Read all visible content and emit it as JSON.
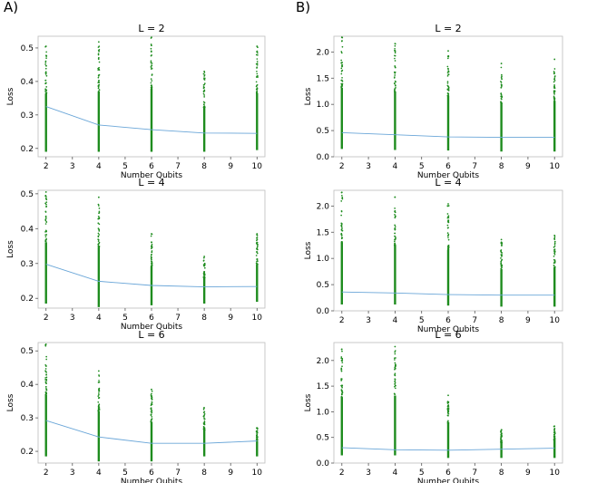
{
  "panel_labels": [
    "A)",
    "B)"
  ],
  "chart_data": [
    {
      "panel": "A)",
      "type": "scatter",
      "title": "L = 2",
      "xlabel": "Number Qubits",
      "ylabel": "Loss",
      "xlim": [
        1.7,
        10.3
      ],
      "ylim": [
        0.175,
        0.535
      ],
      "xticks": [
        2,
        3,
        4,
        5,
        6,
        7,
        8,
        9,
        10
      ],
      "yticks": [
        0.2,
        0.3,
        0.4,
        0.5
      ],
      "scatter_color": "#1e8c1e",
      "line_color": "#6aa6d8",
      "x": [
        2,
        4,
        6,
        8,
        10
      ],
      "min_loss": [
        0.19,
        0.19,
        0.19,
        0.19,
        0.195
      ],
      "max_loss": [
        0.505,
        0.518,
        0.532,
        0.43,
        0.505
      ],
      "mean_loss": [
        0.325,
        0.27,
        0.256,
        0.246,
        0.245
      ]
    },
    {
      "panel": "B)",
      "type": "scatter",
      "title": "L = 2",
      "xlabel": "Number Qubits",
      "ylabel": "Loss",
      "xlim": [
        1.7,
        10.3
      ],
      "ylim": [
        0.0,
        2.3
      ],
      "xticks": [
        2,
        3,
        4,
        5,
        6,
        7,
        8,
        9,
        10
      ],
      "yticks": [
        0.0,
        0.5,
        1.0,
        1.5,
        2.0
      ],
      "scatter_color": "#1e8c1e",
      "line_color": "#6aa6d8",
      "x": [
        2,
        4,
        6,
        8,
        10
      ],
      "min_loss": [
        0.15,
        0.13,
        0.12,
        0.1,
        0.1
      ],
      "max_loss": [
        2.28,
        2.16,
        2.02,
        1.78,
        1.86
      ],
      "mean_loss": [
        0.46,
        0.42,
        0.38,
        0.37,
        0.37
      ]
    },
    {
      "panel": "A)",
      "type": "scatter",
      "title": "L = 4",
      "xlabel": "Number Qubits",
      "ylabel": "Loss",
      "xlim": [
        1.7,
        10.3
      ],
      "ylim": [
        0.172,
        0.51
      ],
      "xticks": [
        2,
        3,
        4,
        5,
        6,
        7,
        8,
        9,
        10
      ],
      "yticks": [
        0.2,
        0.3,
        0.4,
        0.5
      ],
      "scatter_color": "#1e8c1e",
      "line_color": "#6aa6d8",
      "x": [
        2,
        4,
        6,
        8,
        10
      ],
      "min_loss": [
        0.185,
        0.175,
        0.18,
        0.185,
        0.19
      ],
      "max_loss": [
        0.505,
        0.49,
        0.385,
        0.32,
        0.385
      ],
      "mean_loss": [
        0.298,
        0.249,
        0.237,
        0.233,
        0.234
      ]
    },
    {
      "panel": "B)",
      "type": "scatter",
      "title": "L = 4",
      "xlabel": "Number Qubits",
      "ylabel": "Loss",
      "xlim": [
        1.7,
        10.3
      ],
      "ylim": [
        0.0,
        2.3
      ],
      "xticks": [
        2,
        3,
        4,
        5,
        6,
        7,
        8,
        9,
        10
      ],
      "yticks": [
        0.0,
        0.5,
        1.0,
        1.5,
        2.0
      ],
      "scatter_color": "#1e8c1e",
      "line_color": "#6aa6d8",
      "x": [
        2,
        4,
        6,
        8,
        10
      ],
      "min_loss": [
        0.12,
        0.12,
        0.1,
        0.08,
        0.08
      ],
      "max_loss": [
        2.26,
        2.17,
        2.04,
        1.36,
        1.44
      ],
      "mean_loss": [
        0.36,
        0.34,
        0.31,
        0.3,
        0.3
      ]
    },
    {
      "panel": "A)",
      "type": "scatter",
      "title": "L = 6",
      "xlabel": "Number Qubits",
      "ylabel": "Loss",
      "xlim": [
        1.7,
        10.3
      ],
      "ylim": [
        0.165,
        0.525
      ],
      "xticks": [
        2,
        3,
        4,
        5,
        6,
        7,
        8,
        9,
        10
      ],
      "yticks": [
        0.2,
        0.3,
        0.4,
        0.5
      ],
      "scatter_color": "#1e8c1e",
      "line_color": "#6aa6d8",
      "x": [
        2,
        4,
        6,
        8,
        10
      ],
      "min_loss": [
        0.185,
        0.17,
        0.17,
        0.185,
        0.185
      ],
      "max_loss": [
        0.52,
        0.44,
        0.385,
        0.33,
        0.27
      ],
      "mean_loss": [
        0.292,
        0.243,
        0.224,
        0.224,
        0.231
      ]
    },
    {
      "panel": "B)",
      "type": "scatter",
      "title": "L = 6",
      "xlabel": "Number Qubits",
      "ylabel": "Loss",
      "xlim": [
        1.7,
        10.3
      ],
      "ylim": [
        0.0,
        2.35
      ],
      "xticks": [
        2,
        3,
        4,
        5,
        6,
        7,
        8,
        9,
        10
      ],
      "yticks": [
        0.0,
        0.5,
        1.0,
        1.5,
        2.0
      ],
      "scatter_color": "#1e8c1e",
      "line_color": "#6aa6d8",
      "x": [
        2,
        4,
        6,
        8,
        10
      ],
      "min_loss": [
        0.15,
        0.15,
        0.1,
        0.1,
        0.1
      ],
      "max_loss": [
        2.22,
        2.27,
        1.32,
        0.65,
        0.72
      ],
      "mean_loss": [
        0.3,
        0.26,
        0.25,
        0.27,
        0.29
      ]
    }
  ]
}
